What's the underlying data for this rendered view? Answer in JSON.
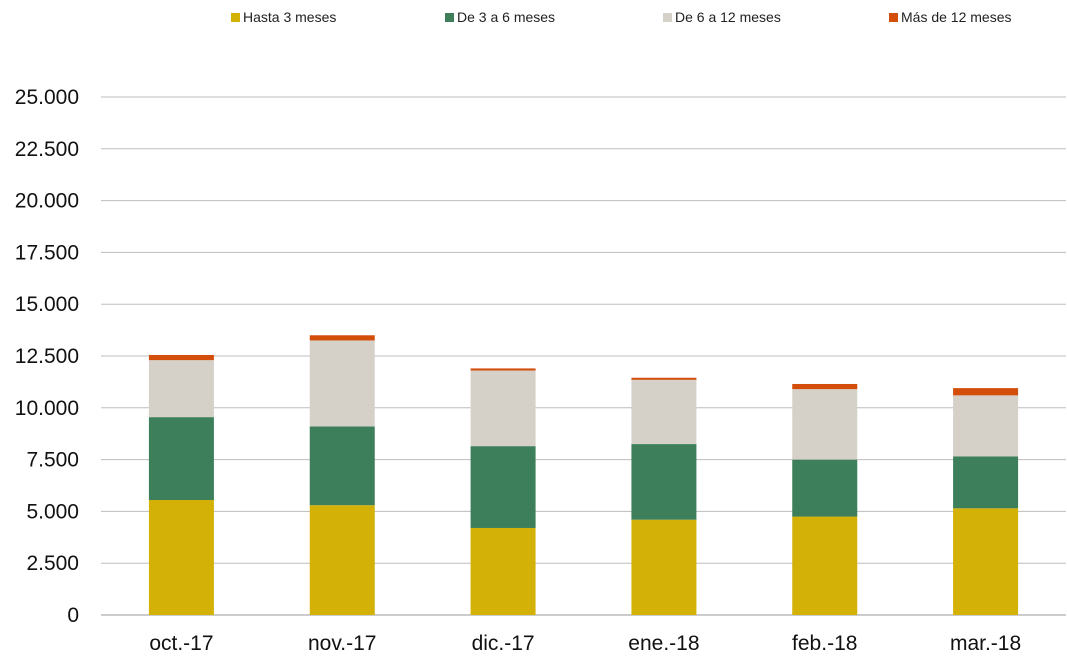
{
  "chart_data": {
    "type": "bar",
    "stacked": true,
    "categories": [
      "oct.-17",
      "nov.-17",
      "dic.-17",
      "ene.-18",
      "feb.-18",
      "mar.-18"
    ],
    "series": [
      {
        "name": "Hasta 3 meses",
        "color": "#D4B106",
        "values": [
          5550,
          5300,
          4200,
          4600,
          4750,
          5150
        ]
      },
      {
        "name": "De 3 a 6 meses",
        "color": "#3C7F5A",
        "values": [
          4000,
          3800,
          3950,
          3650,
          2750,
          2500
        ]
      },
      {
        "name": "De 6 a 12 meses",
        "color": "#D5D1C9",
        "values": [
          2750,
          4150,
          3650,
          3100,
          3400,
          2950
        ]
      },
      {
        "name": "Más de 12 meses",
        "color": "#D24E0A",
        "values": [
          250,
          250,
          100,
          100,
          250,
          350
        ]
      }
    ],
    "ylim": [
      0,
      25000
    ],
    "yticks": [
      0,
      2500,
      5000,
      7500,
      10000,
      12500,
      15000,
      17500,
      20000,
      22500,
      25000
    ],
    "ytick_labels": [
      "0",
      "2.500",
      "5.000",
      "7.500",
      "10.000",
      "12.500",
      "15.000",
      "17.500",
      "20.000",
      "22.500",
      "25.000"
    ],
    "grid": true,
    "legend_position": "top",
    "title": "",
    "xlabel": "",
    "ylabel": ""
  }
}
